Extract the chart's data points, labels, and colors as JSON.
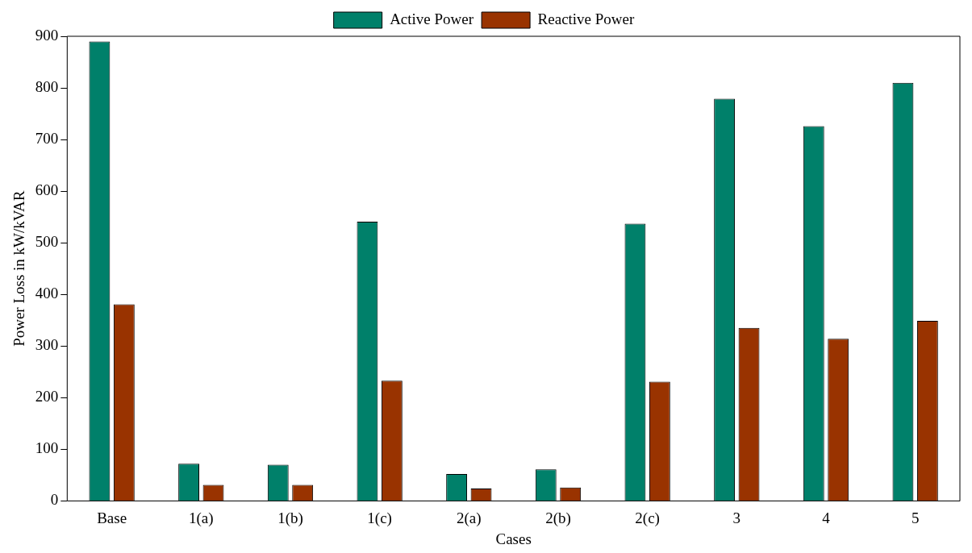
{
  "chart_data": {
    "type": "bar",
    "xlabel": "Cases",
    "ylabel": "Power Loss in kW/kVAR",
    "categories": [
      "Base",
      "1(a)",
      "1(b)",
      "1(c)",
      "2(a)",
      "2(b)",
      "2(c)",
      "3",
      "4",
      "5"
    ],
    "series": [
      {
        "name": "Active Power",
        "color": "#00806a",
        "values": [
          890,
          72,
          70,
          541,
          52,
          61,
          537,
          779,
          726,
          810
        ]
      },
      {
        "name": "Reactive Power",
        "color": "#993300",
        "values": [
          381,
          31,
          31,
          233,
          24,
          26,
          231,
          335,
          314,
          349
        ]
      }
    ],
    "ylim": [
      0,
      900
    ],
    "yticks": [
      0,
      100,
      200,
      300,
      400,
      500,
      600,
      700,
      800,
      900
    ],
    "grid": false,
    "legend": "top"
  }
}
